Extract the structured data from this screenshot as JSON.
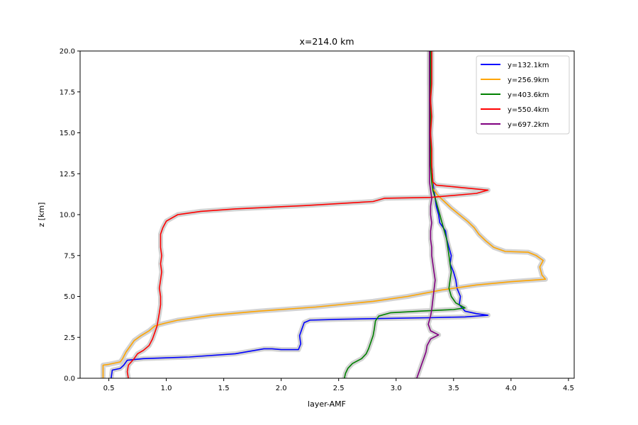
{
  "chart_data": {
    "type": "line",
    "title": "x=214.0 km",
    "xlabel": "layer-AMF",
    "ylabel": "z [km]",
    "xlim": [
      0.25,
      4.55
    ],
    "ylim": [
      0,
      20
    ],
    "x_ticks": [
      "0.5",
      "1.0",
      "1.5",
      "2.0",
      "2.5",
      "3.0",
      "3.5",
      "4.0",
      "4.5"
    ],
    "y_ticks": [
      "0.0",
      "2.5",
      "5.0",
      "7.5",
      "10.0",
      "12.5",
      "15.0",
      "17.5",
      "20.0"
    ],
    "grid": false,
    "legend_position": "top-right",
    "uncertainty_band_color": "#c8c8c8",
    "series": [
      {
        "name": "y=132.1km",
        "color": "#0000ff",
        "points": [
          [
            0.52,
            0
          ],
          [
            0.53,
            0.5
          ],
          [
            0.6,
            0.6
          ],
          [
            0.63,
            0.8
          ],
          [
            0.66,
            1.1
          ],
          [
            0.8,
            1.2
          ],
          [
            1.2,
            1.3
          ],
          [
            1.6,
            1.5
          ],
          [
            1.85,
            1.8
          ],
          [
            1.92,
            1.8
          ],
          [
            2.0,
            1.75
          ],
          [
            2.15,
            1.75
          ],
          [
            2.17,
            2.1
          ],
          [
            2.16,
            2.6
          ],
          [
            2.18,
            3.0
          ],
          [
            2.2,
            3.4
          ],
          [
            2.25,
            3.55
          ],
          [
            2.5,
            3.6
          ],
          [
            2.85,
            3.65
          ],
          [
            3.3,
            3.7
          ],
          [
            3.6,
            3.75
          ],
          [
            3.8,
            3.85
          ],
          [
            3.7,
            3.95
          ],
          [
            3.6,
            4.1
          ],
          [
            3.55,
            4.5
          ],
          [
            3.56,
            5.0
          ],
          [
            3.53,
            5.5
          ],
          [
            3.52,
            6.0
          ],
          [
            3.5,
            6.5
          ],
          [
            3.47,
            7.0
          ],
          [
            3.48,
            7.5
          ],
          [
            3.46,
            8.0
          ],
          [
            3.44,
            8.5
          ],
          [
            3.43,
            9.0
          ],
          [
            3.38,
            9.5
          ],
          [
            3.37,
            10.0
          ],
          [
            3.35,
            10.5
          ],
          [
            3.34,
            11.0
          ],
          [
            3.33,
            11.5
          ],
          [
            3.32,
            12.0
          ],
          [
            3.31,
            13
          ],
          [
            3.3,
            14
          ],
          [
            3.3,
            15
          ],
          [
            3.3,
            16
          ],
          [
            3.3,
            17
          ],
          [
            3.3,
            18
          ],
          [
            3.3,
            19
          ],
          [
            3.3,
            20
          ]
        ]
      },
      {
        "name": "y=256.9km",
        "color": "#ffa500",
        "points": [
          [
            0.45,
            0
          ],
          [
            0.45,
            0.8
          ],
          [
            0.5,
            0.85
          ],
          [
            0.6,
            1.0
          ],
          [
            0.62,
            1.2
          ],
          [
            0.65,
            1.6
          ],
          [
            0.68,
            1.9
          ],
          [
            0.72,
            2.3
          ],
          [
            0.78,
            2.6
          ],
          [
            0.85,
            2.9
          ],
          [
            0.9,
            3.2
          ],
          [
            0.98,
            3.35
          ],
          [
            1.1,
            3.55
          ],
          [
            1.4,
            3.85
          ],
          [
            1.8,
            4.1
          ],
          [
            2.3,
            4.35
          ],
          [
            2.8,
            4.7
          ],
          [
            3.1,
            5.0
          ],
          [
            3.4,
            5.4
          ],
          [
            3.7,
            5.7
          ],
          [
            4.0,
            5.9
          ],
          [
            4.3,
            6.05
          ],
          [
            4.27,
            6.3
          ],
          [
            4.25,
            6.8
          ],
          [
            4.28,
            7.2
          ],
          [
            4.22,
            7.5
          ],
          [
            4.15,
            7.7
          ],
          [
            3.95,
            7.75
          ],
          [
            3.85,
            8.0
          ],
          [
            3.78,
            8.4
          ],
          [
            3.72,
            8.8
          ],
          [
            3.68,
            9.2
          ],
          [
            3.62,
            9.6
          ],
          [
            3.55,
            10.0
          ],
          [
            3.48,
            10.4
          ],
          [
            3.42,
            10.8
          ],
          [
            3.36,
            11.2
          ],
          [
            3.32,
            11.6
          ],
          [
            3.31,
            12.5
          ],
          [
            3.31,
            13
          ],
          [
            3.3,
            14
          ],
          [
            3.3,
            15
          ],
          [
            3.3,
            16
          ],
          [
            3.3,
            17
          ],
          [
            3.29,
            18
          ],
          [
            3.29,
            19
          ],
          [
            3.29,
            20
          ]
        ]
      },
      {
        "name": "y=403.6km",
        "color": "#008000",
        "points": [
          [
            2.55,
            0
          ],
          [
            2.56,
            0.3
          ],
          [
            2.58,
            0.6
          ],
          [
            2.62,
            0.9
          ],
          [
            2.7,
            1.2
          ],
          [
            2.74,
            1.5
          ],
          [
            2.76,
            1.8
          ],
          [
            2.78,
            2.2
          ],
          [
            2.8,
            2.6
          ],
          [
            2.81,
            3.0
          ],
          [
            2.82,
            3.5
          ],
          [
            2.85,
            3.8
          ],
          [
            2.95,
            4.0
          ],
          [
            3.2,
            4.1
          ],
          [
            3.5,
            4.2
          ],
          [
            3.6,
            4.3
          ],
          [
            3.52,
            4.6
          ],
          [
            3.48,
            5.0
          ],
          [
            3.46,
            5.5
          ],
          [
            3.47,
            6.0
          ],
          [
            3.48,
            6.5
          ],
          [
            3.47,
            7.0
          ],
          [
            3.46,
            7.5
          ],
          [
            3.45,
            8.0
          ],
          [
            3.44,
            8.5
          ],
          [
            3.42,
            9.0
          ],
          [
            3.4,
            9.5
          ],
          [
            3.38,
            10.0
          ],
          [
            3.36,
            10.5
          ],
          [
            3.34,
            11.0
          ],
          [
            3.32,
            11.5
          ],
          [
            3.31,
            12.0
          ],
          [
            3.3,
            13
          ],
          [
            3.3,
            14
          ],
          [
            3.3,
            15
          ],
          [
            3.3,
            16
          ],
          [
            3.3,
            17
          ],
          [
            3.3,
            18
          ],
          [
            3.3,
            19
          ],
          [
            3.3,
            20
          ]
        ]
      },
      {
        "name": "y=550.4km",
        "color": "#ff0000",
        "points": [
          [
            0.67,
            0
          ],
          [
            0.66,
            0.4
          ],
          [
            0.67,
            0.8
          ],
          [
            0.72,
            1.2
          ],
          [
            0.75,
            1.5
          ],
          [
            0.8,
            1.7
          ],
          [
            0.85,
            2.0
          ],
          [
            0.88,
            2.4
          ],
          [
            0.9,
            2.8
          ],
          [
            0.92,
            3.2
          ],
          [
            0.93,
            3.6
          ],
          [
            0.94,
            4.0
          ],
          [
            0.95,
            4.5
          ],
          [
            0.95,
            5.0
          ],
          [
            0.94,
            5.5
          ],
          [
            0.95,
            6.0
          ],
          [
            0.96,
            6.5
          ],
          [
            0.95,
            7.0
          ],
          [
            0.96,
            7.5
          ],
          [
            0.95,
            8.0
          ],
          [
            0.95,
            8.5
          ],
          [
            0.95,
            8.8
          ],
          [
            0.97,
            9.2
          ],
          [
            1.0,
            9.6
          ],
          [
            1.1,
            10.0
          ],
          [
            1.3,
            10.2
          ],
          [
            1.6,
            10.35
          ],
          [
            2.2,
            10.55
          ],
          [
            2.8,
            10.8
          ],
          [
            2.9,
            11.0
          ],
          [
            3.3,
            11.05
          ],
          [
            3.7,
            11.3
          ],
          [
            3.8,
            11.5
          ],
          [
            3.5,
            11.7
          ],
          [
            3.35,
            11.8
          ],
          [
            3.32,
            12.0
          ],
          [
            3.31,
            13
          ],
          [
            3.31,
            14
          ],
          [
            3.3,
            15
          ],
          [
            3.31,
            16
          ],
          [
            3.3,
            17
          ],
          [
            3.31,
            18
          ],
          [
            3.31,
            19
          ],
          [
            3.31,
            20
          ]
        ]
      },
      {
        "name": "y=697.2km",
        "color": "#800080",
        "points": [
          [
            3.18,
            0
          ],
          [
            3.2,
            0.4
          ],
          [
            3.22,
            0.8
          ],
          [
            3.24,
            1.2
          ],
          [
            3.26,
            1.6
          ],
          [
            3.27,
            2.0
          ],
          [
            3.3,
            2.4
          ],
          [
            3.37,
            2.65
          ],
          [
            3.3,
            2.9
          ],
          [
            3.28,
            3.3
          ],
          [
            3.3,
            3.8
          ],
          [
            3.31,
            4.2
          ],
          [
            3.32,
            4.8
          ],
          [
            3.33,
            5.4
          ],
          [
            3.34,
            6.0
          ],
          [
            3.33,
            6.5
          ],
          [
            3.32,
            7.0
          ],
          [
            3.31,
            7.5
          ],
          [
            3.31,
            8.0
          ],
          [
            3.3,
            8.5
          ],
          [
            3.3,
            9.0
          ],
          [
            3.31,
            9.5
          ],
          [
            3.3,
            10.0
          ],
          [
            3.3,
            10.5
          ],
          [
            3.31,
            11.0
          ],
          [
            3.3,
            11.5
          ],
          [
            3.29,
            12.0
          ],
          [
            3.29,
            13
          ],
          [
            3.29,
            14
          ],
          [
            3.29,
            15
          ],
          [
            3.29,
            16
          ],
          [
            3.29,
            17
          ],
          [
            3.29,
            18
          ],
          [
            3.29,
            19
          ],
          [
            3.29,
            20
          ]
        ]
      }
    ]
  }
}
